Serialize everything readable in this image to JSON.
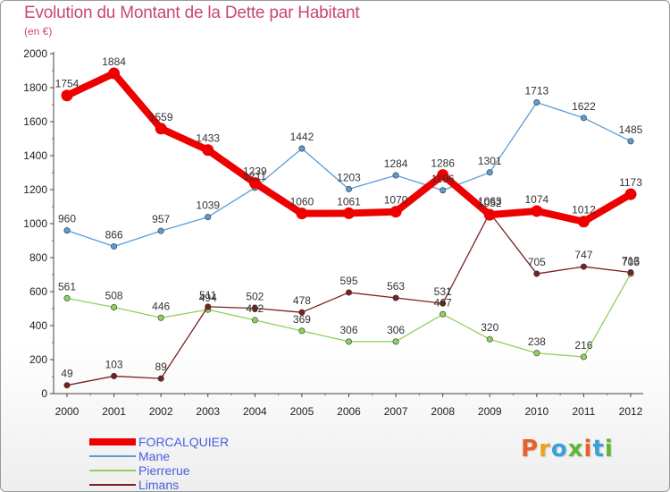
{
  "header": {
    "title": "Evolution du Montant de la Dette par Habitant",
    "subtitle": "(en €)"
  },
  "logo": {
    "text": "Proxiti",
    "colors": [
      "#e8612c",
      "#f0a020",
      "#3aa0d8",
      "#5cb82e",
      "#e8612c",
      "#3aa0d8",
      "#5cb82e"
    ]
  },
  "chart_data": {
    "type": "line",
    "title": "Evolution du Montant de la Dette par Habitant",
    "subtitle": "(en €)",
    "xlabel": "",
    "ylabel": "",
    "x": [
      "2000",
      "2001",
      "2002",
      "2003",
      "2004",
      "2005",
      "2006",
      "2007",
      "2008",
      "2009",
      "2010",
      "2011",
      "2012"
    ],
    "ylim": [
      0,
      2000
    ],
    "yticks": [
      0,
      200,
      400,
      600,
      800,
      1000,
      1200,
      1400,
      1600,
      1800,
      2000
    ],
    "grid": false,
    "legend": "bottom-left",
    "series": [
      {
        "name": "FORCALQUIER",
        "color": "#ee0000",
        "values": [
          1754,
          1884,
          1559,
          1433,
          1239,
          1060,
          1061,
          1070,
          1286,
          1052,
          1074,
          1012,
          1173
        ]
      },
      {
        "name": "Mane",
        "color": "#5b9bd5",
        "values": [
          960,
          866,
          957,
          1039,
          1211,
          1442,
          1203,
          1284,
          1196,
          1301,
          1713,
          1622,
          1485
        ]
      },
      {
        "name": "Pierrerue",
        "color": "#8fd15a",
        "values": [
          561,
          508,
          446,
          494,
          432,
          369,
          306,
          306,
          467,
          320,
          238,
          216,
          705
        ]
      },
      {
        "name": "Limans",
        "color": "#7a2020",
        "values": [
          49,
          103,
          89,
          511,
          502,
          478,
          595,
          563,
          531,
          1063,
          705,
          747,
          713
        ]
      }
    ]
  }
}
